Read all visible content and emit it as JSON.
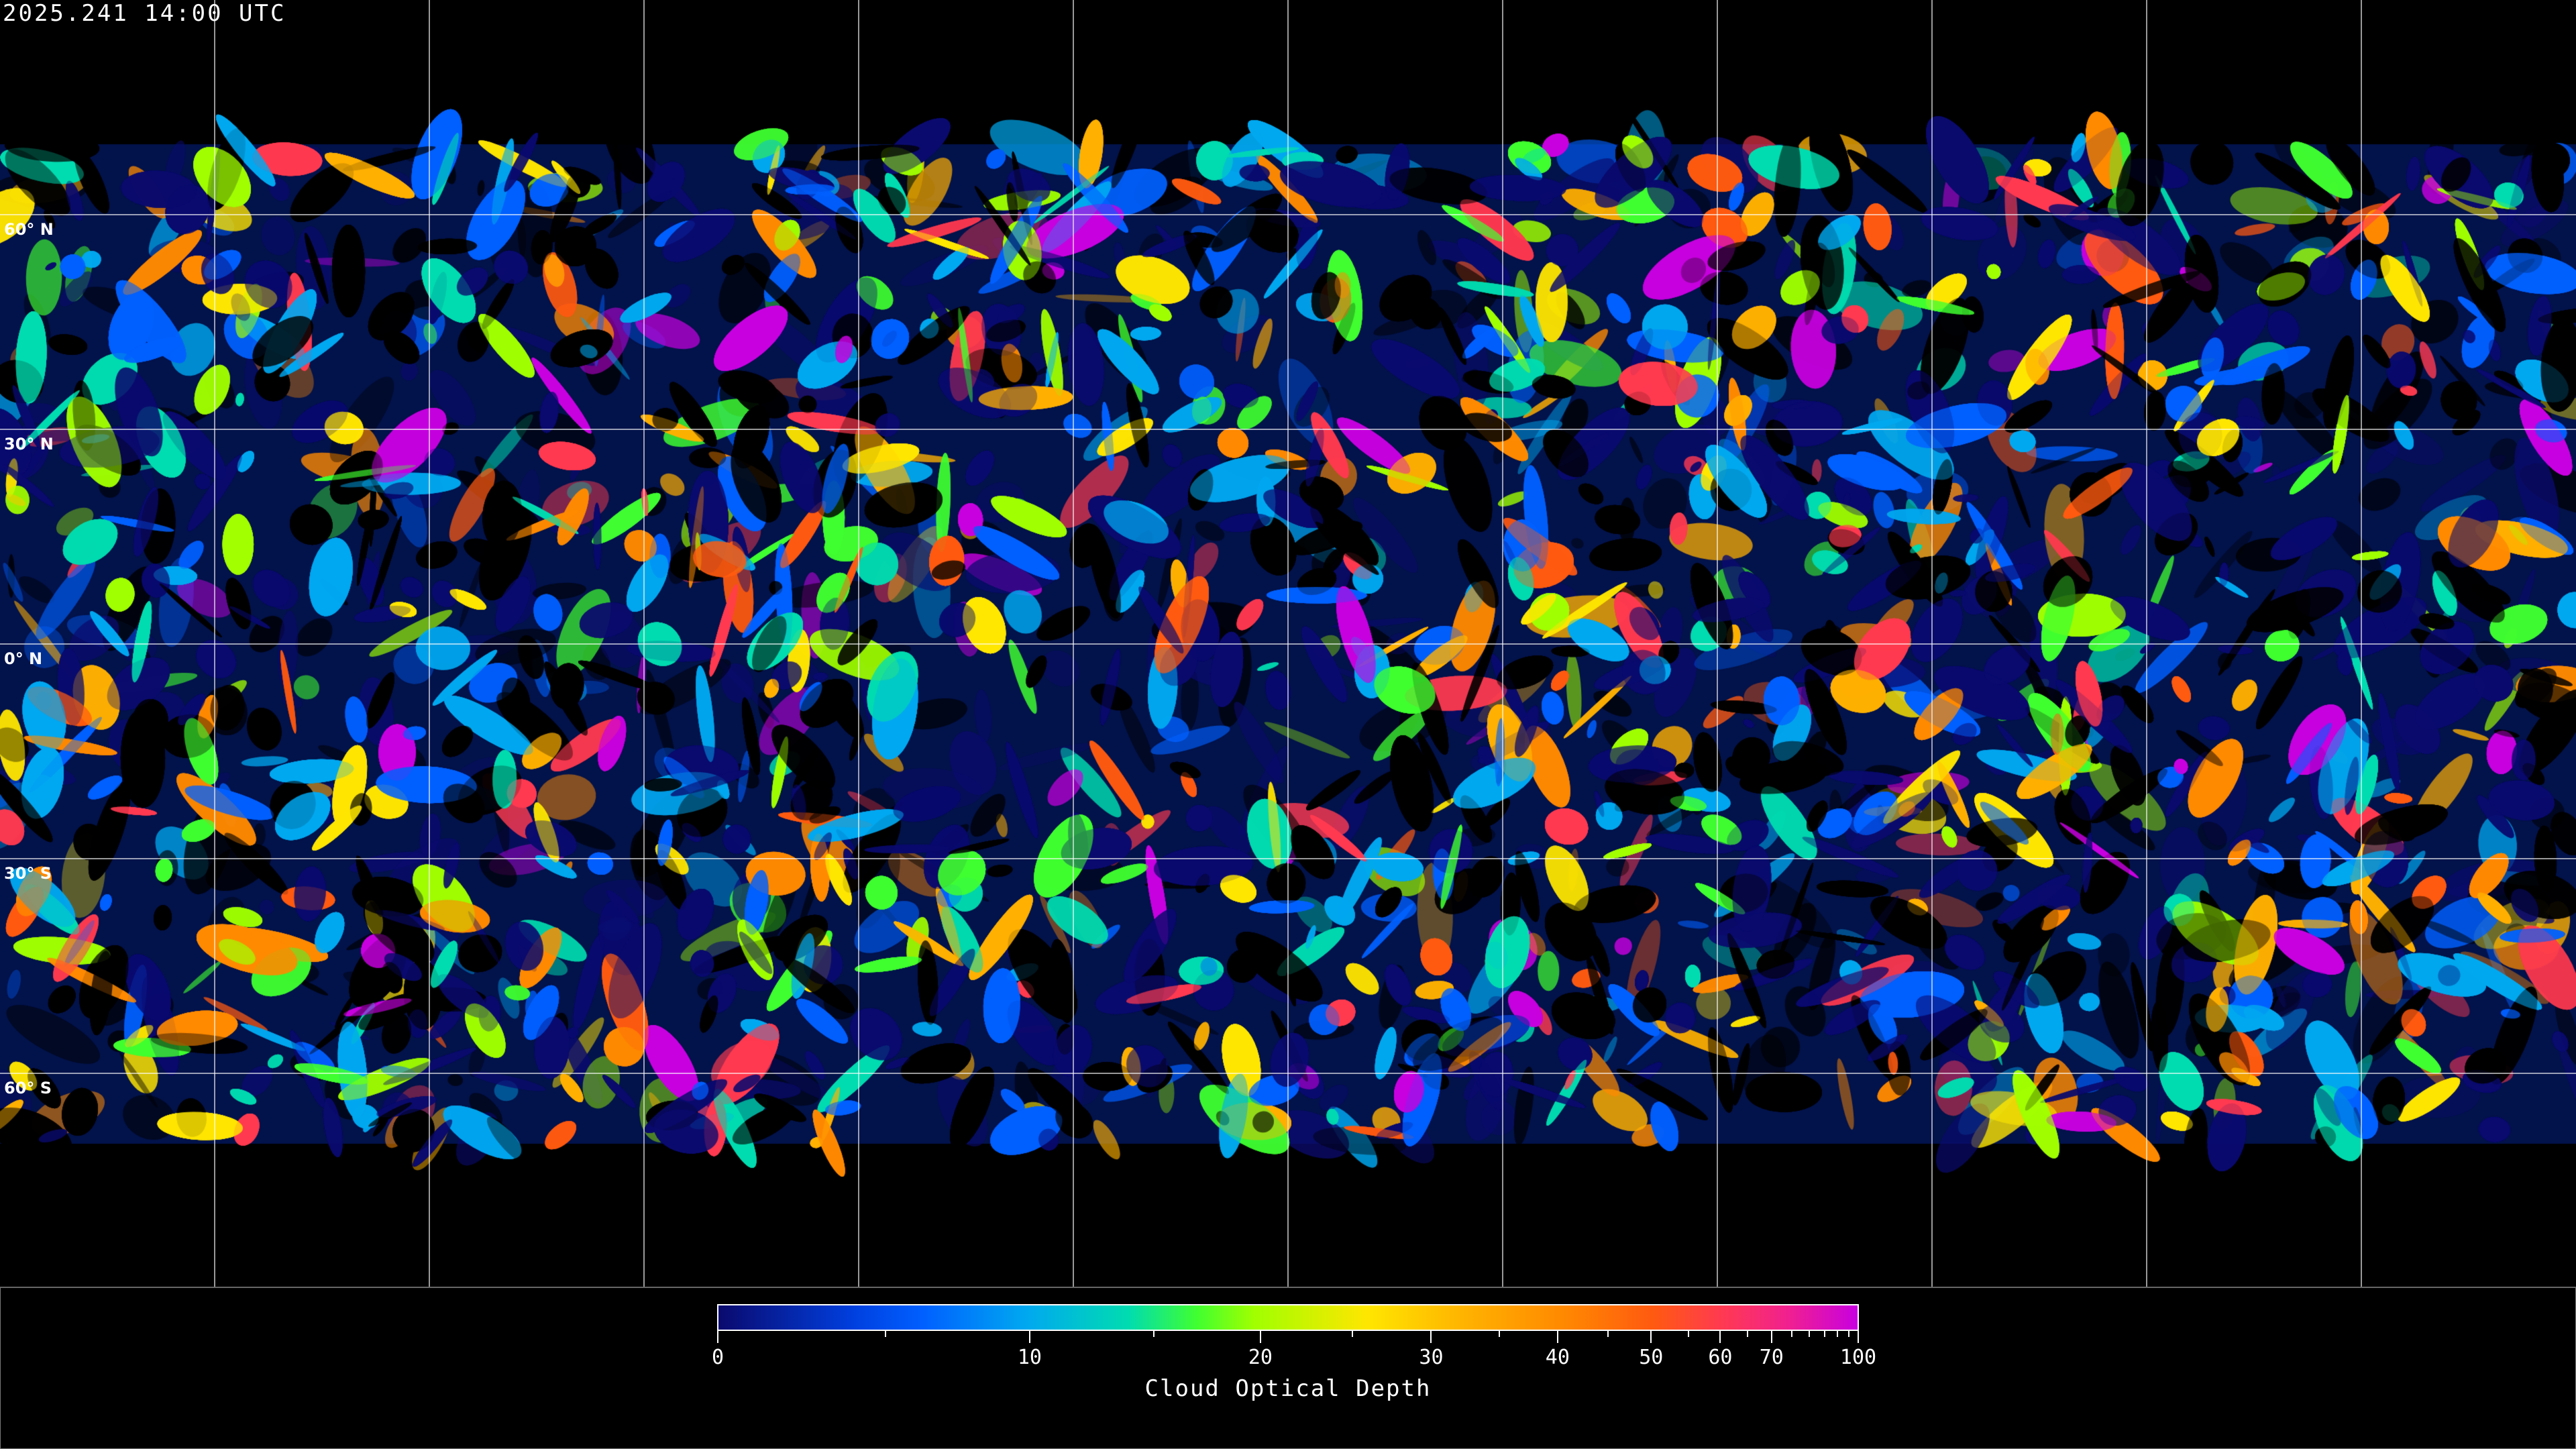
{
  "header": {
    "timestamp": "2025.241 14:00 UTC"
  },
  "map": {
    "projection": "equirectangular",
    "graticule_spacing_deg": 30,
    "lat_labels": [
      "60° N",
      "30° N",
      "0° N",
      "30° S",
      "60° S"
    ],
    "lat_values": [
      60,
      30,
      0,
      -30,
      -60
    ],
    "background_color": "#000000",
    "gridline_color": "#ffffff"
  },
  "colorbar": {
    "title": "Cloud Optical Depth",
    "range": [
      0,
      100
    ],
    "tick_labels": [
      "0",
      "10",
      "20",
      "30",
      "40",
      "50",
      "60",
      "70",
      "100"
    ],
    "tick_values": [
      0,
      10,
      20,
      30,
      40,
      50,
      60,
      70,
      100
    ],
    "minor_tick_values": [
      5,
      15,
      25,
      35,
      45,
      55,
      65,
      75,
      80,
      85,
      90,
      95
    ],
    "colors": [
      "#0a0a6e",
      "#0060ff",
      "#00a8f0",
      "#00dcb0",
      "#40ff30",
      "#a0ff00",
      "#ffe600",
      "#ffb000",
      "#ff8a00",
      "#ff5a10",
      "#ff3a50",
      "#c800e0"
    ]
  }
}
